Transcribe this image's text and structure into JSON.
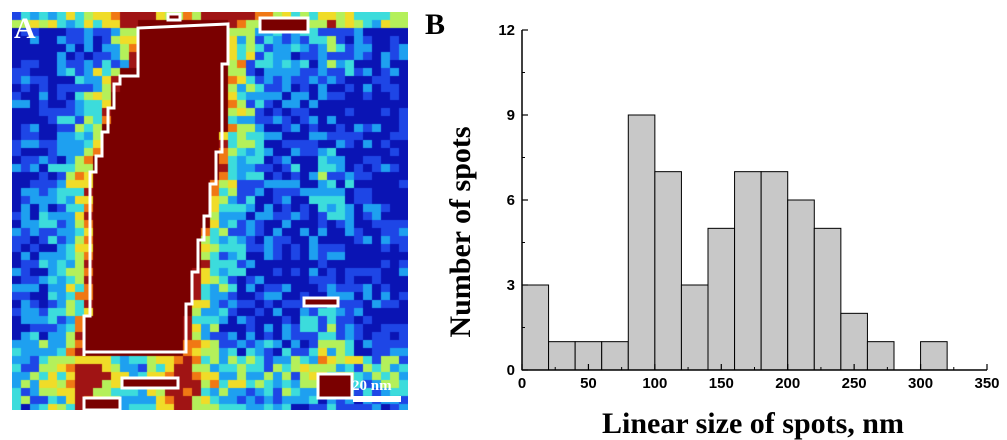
{
  "panel_a": {
    "label": "A",
    "scale_bar_label": "20 nm",
    "colormap": [
      "#0a14b4",
      "#1e46e6",
      "#1ea0f0",
      "#3cdcdc",
      "#b4f05a",
      "#f0dc28",
      "#f07814",
      "#a01414",
      "#7a0000"
    ],
    "outline_color": "#ffffff"
  },
  "panel_b": {
    "label": "B"
  },
  "chart_data": {
    "type": "bar",
    "bin_edges": [
      0,
      20,
      40,
      60,
      80,
      100,
      120,
      140,
      160,
      180,
      200,
      220,
      240,
      260,
      280,
      300,
      320
    ],
    "values": [
      3,
      1,
      1,
      1,
      9,
      7,
      3,
      5,
      7,
      7,
      6,
      5,
      2,
      1,
      0,
      1
    ],
    "xlabel": "Linear size of spots, nm",
    "ylabel": "Number of spots",
    "xlim": [
      0,
      350
    ],
    "ylim": [
      0,
      12
    ],
    "xticks": [
      "0",
      "50",
      "100",
      "150",
      "200",
      "250",
      "300",
      "350"
    ],
    "yticks": [
      "0",
      "3",
      "6",
      "9",
      "12"
    ],
    "bar_color": "#c8c8c8",
    "bar_edge_color": "#000000",
    "grid": false
  }
}
